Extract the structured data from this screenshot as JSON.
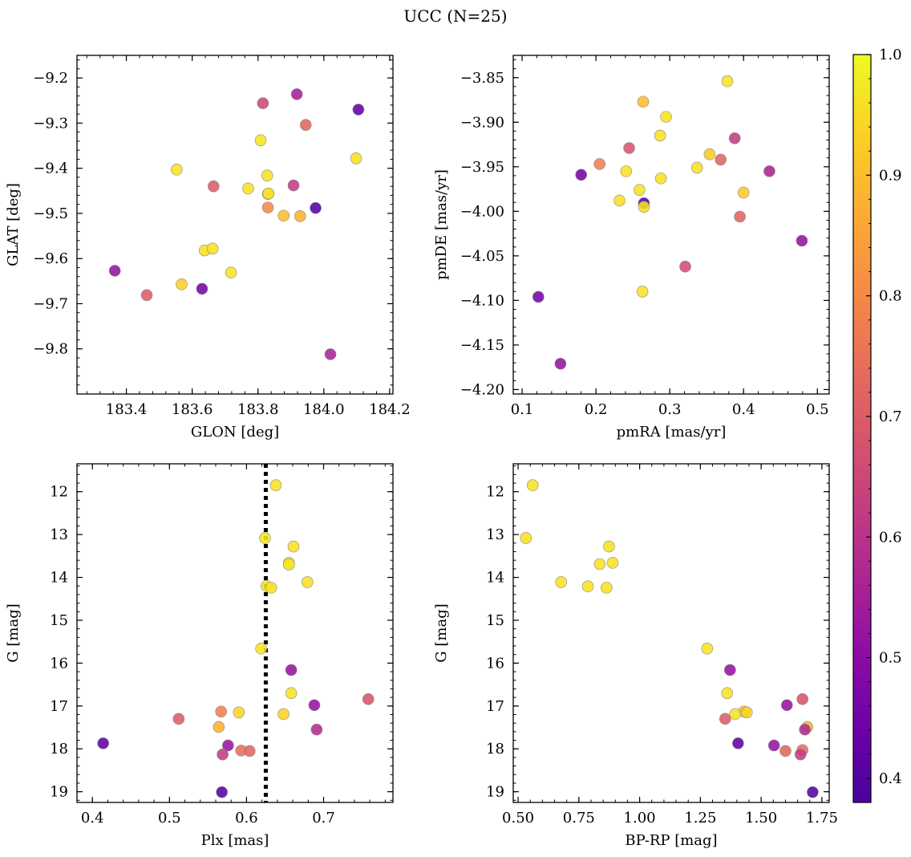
{
  "figure": {
    "title": "UCC (N=25)"
  },
  "colorbar": {
    "min": 0.38,
    "max": 1.0,
    "ticks": [
      0.4,
      0.5,
      0.6,
      0.7,
      0.8,
      0.9,
      1.0
    ],
    "tick_labels": [
      "0.4",
      "0.5",
      "0.6",
      "0.7",
      "0.8",
      "0.9",
      "1.0"
    ],
    "cmap": "plasma"
  },
  "chart_data": [
    {
      "id": "glon-glat",
      "type": "scatter",
      "xlabel": "GLON [deg]",
      "ylabel": "GLAT [deg]",
      "xlim": [
        183.25,
        184.21
      ],
      "ylim": [
        -9.9,
        -9.15
      ],
      "y_inverted": false,
      "xticks": [
        183.4,
        183.6,
        183.8,
        184.0,
        184.2
      ],
      "xtick_labels": [
        "183.4",
        "183.6",
        "183.8",
        "184.0",
        "184.2"
      ],
      "yticks": [
        -9.2,
        -9.3,
        -9.4,
        -9.5,
        -9.6,
        -9.7,
        -9.8
      ],
      "ytick_labels": [
        "−9.2",
        "−9.3",
        "−9.4",
        "−9.5",
        "−9.6",
        "−9.7",
        "−9.8"
      ],
      "points": [
        {
          "x": 183.553,
          "y": -9.403,
          "c": 0.96
        },
        {
          "x": 183.665,
          "y": -9.44,
          "c": 0.7
        },
        {
          "x": 183.77,
          "y": -9.445,
          "c": 0.96
        },
        {
          "x": 183.808,
          "y": -9.338,
          "c": 0.97
        },
        {
          "x": 183.815,
          "y": -9.256,
          "c": 0.65
        },
        {
          "x": 183.828,
          "y": -9.416,
          "c": 0.96
        },
        {
          "x": 183.83,
          "y": -9.457,
          "c": 0.95
        },
        {
          "x": 183.83,
          "y": -9.487,
          "c": 0.8
        },
        {
          "x": 183.878,
          "y": -9.505,
          "c": 0.9
        },
        {
          "x": 183.908,
          "y": -9.438,
          "c": 0.62
        },
        {
          "x": 183.918,
          "y": -9.236,
          "c": 0.55
        },
        {
          "x": 183.928,
          "y": -9.506,
          "c": 0.88
        },
        {
          "x": 183.945,
          "y": -9.304,
          "c": 0.72
        },
        {
          "x": 183.975,
          "y": -9.488,
          "c": 0.4
        },
        {
          "x": 184.02,
          "y": -9.812,
          "c": 0.56
        },
        {
          "x": 184.098,
          "y": -9.378,
          "c": 0.96
        },
        {
          "x": 184.105,
          "y": -9.27,
          "c": 0.42
        },
        {
          "x": 183.365,
          "y": -9.627,
          "c": 0.52
        },
        {
          "x": 183.462,
          "y": -9.681,
          "c": 0.7
        },
        {
          "x": 183.568,
          "y": -9.657,
          "c": 0.93
        },
        {
          "x": 183.63,
          "y": -9.667,
          "c": 0.46
        },
        {
          "x": 183.638,
          "y": -9.582,
          "c": 0.96
        },
        {
          "x": 183.662,
          "y": -9.578,
          "c": 0.96
        },
        {
          "x": 183.718,
          "y": -9.631,
          "c": 0.96
        },
        {
          "x": 183.832,
          "y": -9.456,
          "c": 0.96
        }
      ]
    },
    {
      "id": "pmra-pmde",
      "type": "scatter",
      "xlabel": "pmRA [mas/yr]",
      "ylabel": "pmDE [mas/yr]",
      "xlim": [
        0.088,
        0.516
      ],
      "ylim": [
        -4.205,
        -3.825
      ],
      "y_inverted": false,
      "xticks": [
        0.1,
        0.2,
        0.3,
        0.4,
        0.5
      ],
      "xtick_labels": [
        "0.1",
        "0.2",
        "0.3",
        "0.4",
        "0.5"
      ],
      "yticks": [
        -3.85,
        -3.9,
        -3.95,
        -4.0,
        -4.05,
        -4.1,
        -4.15,
        -4.2
      ],
      "ytick_labels": [
        "−3.85",
        "−3.90",
        "−3.95",
        "−4.00",
        "−4.05",
        "−4.10",
        "−4.15",
        "−4.20"
      ],
      "points": [
        {
          "x": 0.378,
          "y": -3.854,
          "c": 0.96
        },
        {
          "x": 0.264,
          "y": -3.877,
          "c": 0.9
        },
        {
          "x": 0.295,
          "y": -3.894,
          "c": 0.96
        },
        {
          "x": 0.388,
          "y": -3.918,
          "c": 0.62
        },
        {
          "x": 0.287,
          "y": -3.915,
          "c": 0.96
        },
        {
          "x": 0.245,
          "y": -3.929,
          "c": 0.68
        },
        {
          "x": 0.354,
          "y": -3.936,
          "c": 0.92
        },
        {
          "x": 0.369,
          "y": -3.942,
          "c": 0.72
        },
        {
          "x": 0.205,
          "y": -3.947,
          "c": 0.78
        },
        {
          "x": 0.337,
          "y": -3.951,
          "c": 0.96
        },
        {
          "x": 0.241,
          "y": -3.955,
          "c": 0.96
        },
        {
          "x": 0.435,
          "y": -3.955,
          "c": 0.56
        },
        {
          "x": 0.18,
          "y": -3.959,
          "c": 0.46
        },
        {
          "x": 0.288,
          "y": -3.963,
          "c": 0.96
        },
        {
          "x": 0.259,
          "y": -3.976,
          "c": 0.96
        },
        {
          "x": 0.4,
          "y": -3.979,
          "c": 0.92
        },
        {
          "x": 0.232,
          "y": -3.988,
          "c": 0.96
        },
        {
          "x": 0.265,
          "y": -3.991,
          "c": 0.4
        },
        {
          "x": 0.265,
          "y": -3.995,
          "c": 0.96
        },
        {
          "x": 0.395,
          "y": -4.006,
          "c": 0.72
        },
        {
          "x": 0.479,
          "y": -4.033,
          "c": 0.52
        },
        {
          "x": 0.321,
          "y": -4.062,
          "c": 0.66
        },
        {
          "x": 0.263,
          "y": -4.09,
          "c": 0.96
        },
        {
          "x": 0.122,
          "y": -4.096,
          "c": 0.46
        },
        {
          "x": 0.152,
          "y": -4.171,
          "c": 0.52
        }
      ]
    },
    {
      "id": "plx-g",
      "type": "scatter",
      "xlabel": "Plx [mas]",
      "ylabel": "G [mag]",
      "xlim": [
        0.38,
        0.79
      ],
      "ylim": [
        11.35,
        19.25
      ],
      "y_inverted": true,
      "vline": 0.625,
      "xticks": [
        0.4,
        0.5,
        0.6,
        0.7
      ],
      "xtick_labels": [
        "0.4",
        "0.5",
        "0.6",
        "0.7"
      ],
      "yticks": [
        12,
        13,
        14,
        15,
        16,
        17,
        18,
        19
      ],
      "ytick_labels": [
        "12",
        "13",
        "14",
        "15",
        "16",
        "17",
        "18",
        "19"
      ],
      "points": [
        {
          "x": 0.638,
          "y": 11.85,
          "c": 0.96
        },
        {
          "x": 0.624,
          "y": 13.08,
          "c": 0.97
        },
        {
          "x": 0.661,
          "y": 13.28,
          "c": 0.96
        },
        {
          "x": 0.655,
          "y": 13.66,
          "c": 0.96
        },
        {
          "x": 0.655,
          "y": 13.7,
          "c": 0.97
        },
        {
          "x": 0.679,
          "y": 14.11,
          "c": 0.96
        },
        {
          "x": 0.626,
          "y": 14.2,
          "c": 0.96
        },
        {
          "x": 0.632,
          "y": 14.24,
          "c": 0.96
        },
        {
          "x": 0.619,
          "y": 15.66,
          "c": 0.96
        },
        {
          "x": 0.658,
          "y": 16.16,
          "c": 0.52
        },
        {
          "x": 0.658,
          "y": 16.7,
          "c": 0.96
        },
        {
          "x": 0.758,
          "y": 16.84,
          "c": 0.68
        },
        {
          "x": 0.688,
          "y": 16.98,
          "c": 0.52
        },
        {
          "x": 0.567,
          "y": 17.13,
          "c": 0.78
        },
        {
          "x": 0.59,
          "y": 17.15,
          "c": 0.94
        },
        {
          "x": 0.648,
          "y": 17.19,
          "c": 0.94
        },
        {
          "x": 0.512,
          "y": 17.3,
          "c": 0.7
        },
        {
          "x": 0.564,
          "y": 17.49,
          "c": 0.88
        },
        {
          "x": 0.691,
          "y": 17.55,
          "c": 0.58
        },
        {
          "x": 0.414,
          "y": 17.87,
          "c": 0.42
        },
        {
          "x": 0.576,
          "y": 17.92,
          "c": 0.52
        },
        {
          "x": 0.593,
          "y": 18.04,
          "c": 0.74
        },
        {
          "x": 0.604,
          "y": 18.05,
          "c": 0.72
        },
        {
          "x": 0.569,
          "y": 18.13,
          "c": 0.62
        },
        {
          "x": 0.568,
          "y": 19.01,
          "c": 0.4
        }
      ]
    },
    {
      "id": "bprp-g",
      "type": "scatter",
      "xlabel": "BP-RP [mag]",
      "ylabel": "G [mag]",
      "xlim": [
        0.48,
        1.78
      ],
      "ylim": [
        11.35,
        19.25
      ],
      "y_inverted": true,
      "xticks": [
        0.5,
        0.75,
        1.0,
        1.25,
        1.5,
        1.75
      ],
      "xtick_labels": [
        "0.50",
        "0.75",
        "1.00",
        "1.25",
        "1.50",
        "1.75"
      ],
      "yticks": [
        12,
        13,
        14,
        15,
        16,
        17,
        18,
        19
      ],
      "ytick_labels": [
        "12",
        "13",
        "14",
        "15",
        "16",
        "17",
        "18",
        "19"
      ],
      "points": [
        {
          "x": 0.56,
          "y": 11.85,
          "c": 0.96
        },
        {
          "x": 0.532,
          "y": 13.08,
          "c": 0.96
        },
        {
          "x": 0.874,
          "y": 13.28,
          "c": 0.96
        },
        {
          "x": 0.889,
          "y": 13.66,
          "c": 0.96
        },
        {
          "x": 0.836,
          "y": 13.69,
          "c": 0.96
        },
        {
          "x": 0.677,
          "y": 14.11,
          "c": 0.96
        },
        {
          "x": 0.787,
          "y": 14.21,
          "c": 0.96
        },
        {
          "x": 0.864,
          "y": 14.24,
          "c": 0.96
        },
        {
          "x": 1.278,
          "y": 15.66,
          "c": 0.96
        },
        {
          "x": 1.372,
          "y": 16.16,
          "c": 0.52
        },
        {
          "x": 1.36,
          "y": 16.7,
          "c": 0.96
        },
        {
          "x": 1.67,
          "y": 16.84,
          "c": 0.68
        },
        {
          "x": 1.606,
          "y": 16.98,
          "c": 0.52
        },
        {
          "x": 1.43,
          "y": 17.13,
          "c": 0.9
        },
        {
          "x": 1.441,
          "y": 17.15,
          "c": 0.94
        },
        {
          "x": 1.393,
          "y": 17.19,
          "c": 0.96
        },
        {
          "x": 1.352,
          "y": 17.3,
          "c": 0.7
        },
        {
          "x": 1.69,
          "y": 17.49,
          "c": 0.88
        },
        {
          "x": 1.68,
          "y": 17.55,
          "c": 0.58
        },
        {
          "x": 1.405,
          "y": 17.87,
          "c": 0.42
        },
        {
          "x": 1.553,
          "y": 17.92,
          "c": 0.52
        },
        {
          "x": 1.67,
          "y": 18.03,
          "c": 0.74
        },
        {
          "x": 1.6,
          "y": 18.05,
          "c": 0.72
        },
        {
          "x": 1.662,
          "y": 18.13,
          "c": 0.62
        },
        {
          "x": 1.712,
          "y": 19.01,
          "c": 0.4
        }
      ]
    }
  ]
}
